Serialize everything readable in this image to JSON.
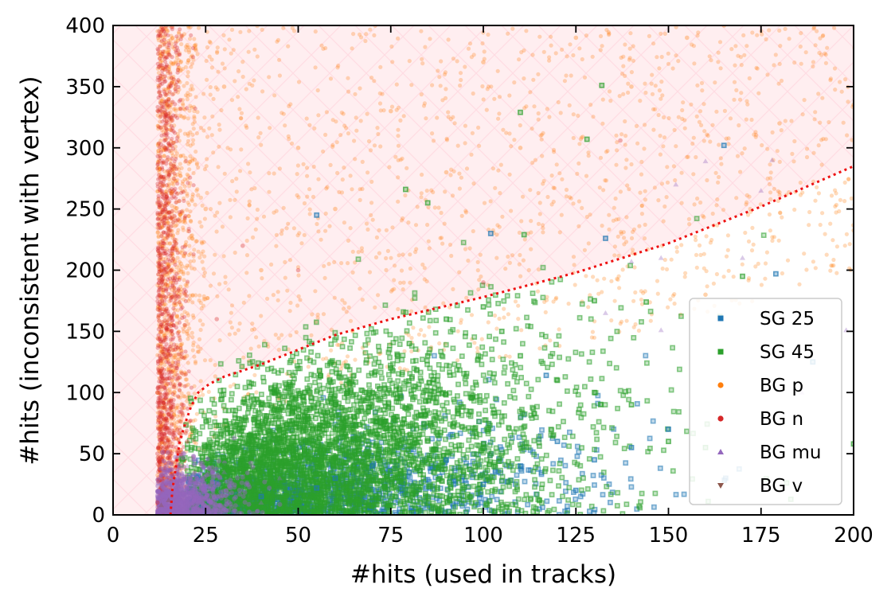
{
  "chart_data": {
    "type": "scatter",
    "title": "",
    "xlabel": "#hits (used in tracks)",
    "ylabel": "#hits (inconsistent with vertex)",
    "xlim": [
      0,
      200
    ],
    "ylim": [
      0,
      400
    ],
    "x_ticks": [
      0,
      25,
      50,
      75,
      100,
      125,
      150,
      175,
      200
    ],
    "y_ticks": [
      0,
      50,
      100,
      150,
      200,
      250,
      300,
      350,
      400
    ],
    "x_tick_labels": [
      "0",
      "25",
      "50",
      "75",
      "100",
      "125",
      "150",
      "175",
      "200"
    ],
    "y_tick_labels": [
      "0",
      "50",
      "100",
      "150",
      "200",
      "250",
      "300",
      "350",
      "400"
    ],
    "grid": false,
    "legend_position": "lower-right",
    "series": [
      {
        "name": "SG 25",
        "color": "#1f77b4",
        "marker": "square-hollow",
        "sample_points": [
          [
            40,
            15
          ],
          [
            55,
            22
          ],
          [
            60,
            30
          ],
          [
            70,
            40
          ],
          [
            80,
            35
          ],
          [
            90,
            45
          ],
          [
            100,
            25
          ],
          [
            110,
            40
          ],
          [
            117,
            114
          ],
          [
            120,
            60
          ],
          [
            125,
            20
          ],
          [
            130,
            45
          ],
          [
            140,
            55
          ],
          [
            150,
            70
          ],
          [
            165,
            302
          ],
          [
            179,
            197
          ],
          [
            189,
            125
          ],
          [
            133,
            226
          ],
          [
            102,
            230
          ],
          [
            55,
            245
          ]
        ]
      },
      {
        "name": "SG 45",
        "color": "#2ca02c",
        "marker": "square-hollow",
        "sample_points": [
          [
            30,
            40
          ],
          [
            40,
            60
          ],
          [
            50,
            80
          ],
          [
            60,
            90
          ],
          [
            70,
            100
          ],
          [
            75,
            120
          ],
          [
            80,
            140
          ],
          [
            85,
            130
          ],
          [
            90,
            160
          ],
          [
            100,
            170
          ],
          [
            105,
            150
          ],
          [
            110,
            130
          ],
          [
            120,
            110
          ],
          [
            130,
            100
          ],
          [
            140,
            90
          ],
          [
            150,
            60
          ],
          [
            160,
            55
          ],
          [
            110,
            329
          ],
          [
            132,
            351
          ],
          [
            128,
            307
          ],
          [
            111,
            229
          ],
          [
            79,
            266
          ],
          [
            85,
            255
          ],
          [
            130,
            175
          ],
          [
            144,
            174
          ],
          [
            170,
            195
          ],
          [
            200,
            58
          ]
        ]
      },
      {
        "name": "BG p",
        "color": "#ff7f0e",
        "marker": "circle",
        "sample_points": [
          [
            12,
            100
          ],
          [
            13,
            200
          ],
          [
            14,
            300
          ],
          [
            15,
            380
          ],
          [
            20,
            150
          ],
          [
            25,
            250
          ],
          [
            30,
            350
          ],
          [
            40,
            200
          ],
          [
            50,
            300
          ],
          [
            60,
            250
          ],
          [
            75,
            330
          ],
          [
            90,
            280
          ],
          [
            100,
            370
          ],
          [
            110,
            300
          ],
          [
            125,
            390
          ],
          [
            140,
            350
          ],
          [
            155,
            390
          ],
          [
            165,
            400
          ],
          [
            200,
            335
          ],
          [
            180,
            320
          ],
          [
            160,
            180
          ]
        ]
      },
      {
        "name": "BG n",
        "color": "#d62728",
        "marker": "circle",
        "sample_points": [
          [
            12,
            10
          ],
          [
            12,
            50
          ],
          [
            12,
            100
          ],
          [
            13,
            150
          ],
          [
            13,
            200
          ],
          [
            14,
            250
          ],
          [
            14,
            300
          ],
          [
            15,
            350
          ],
          [
            16,
            80
          ],
          [
            17,
            120
          ],
          [
            20,
            60
          ],
          [
            28,
            160
          ],
          [
            35,
            220
          ],
          [
            50,
            200
          ],
          [
            100,
            190
          ],
          [
            137,
            306
          ]
        ]
      },
      {
        "name": "BG mu",
        "color": "#9467bd",
        "marker": "triangle-up",
        "sample_points": [
          [
            14,
            10
          ],
          [
            15,
            20
          ],
          [
            18,
            30
          ],
          [
            20,
            40
          ],
          [
            22,
            15
          ],
          [
            25,
            25
          ],
          [
            30,
            35
          ],
          [
            35,
            20
          ],
          [
            40,
            10
          ],
          [
            45,
            30
          ],
          [
            133,
            165
          ],
          [
            148,
            210
          ],
          [
            152,
            270
          ],
          [
            160,
            289
          ],
          [
            140,
            207
          ],
          [
            170,
            210
          ],
          [
            175,
            265
          ],
          [
            148,
            151
          ],
          [
            178,
            290
          ],
          [
            198,
            151
          ],
          [
            186,
            100
          ]
        ]
      },
      {
        "name": "BG v",
        "color": "#8c564b",
        "marker": "triangle-down",
        "sample_points": [
          [
            13,
            8
          ],
          [
            15,
            12
          ]
        ]
      }
    ],
    "threshold_curve": {
      "style": "dotted",
      "color": "#ee1111",
      "points": [
        [
          15.5,
          0
        ],
        [
          16,
          20
        ],
        [
          17,
          40
        ],
        [
          18,
          60
        ],
        [
          19.5,
          75
        ],
        [
          21,
          88
        ],
        [
          23,
          100
        ],
        [
          26,
          107
        ],
        [
          30,
          113
        ],
        [
          40,
          123
        ],
        [
          50,
          135
        ],
        [
          60,
          147
        ],
        [
          75,
          160
        ],
        [
          100,
          178
        ],
        [
          125,
          198
        ],
        [
          150,
          222
        ],
        [
          175,
          252
        ],
        [
          200,
          285
        ]
      ]
    },
    "shaded_region": {
      "description": "hatched light-red region: x<12 or above threshold curve",
      "color": "#ffeef0",
      "hatch_color": "#ffdce3"
    }
  }
}
